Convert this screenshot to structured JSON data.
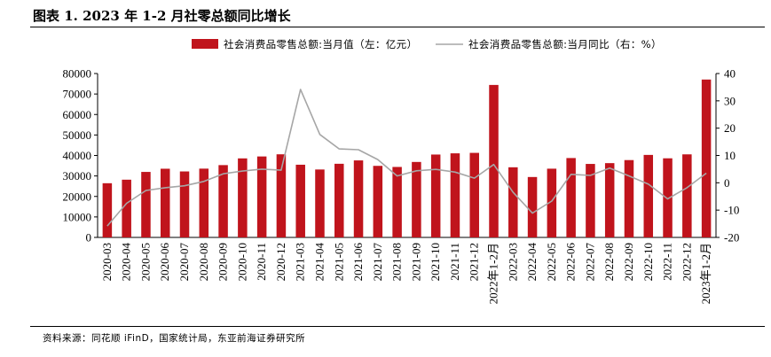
{
  "title": "图表 1.   2023 年 1-2 月社零总额同比增长",
  "source": "资料来源：同花顺 iFinD，国家统计局，东亚前海证券研究所",
  "chart_data": {
    "type": "bar+line",
    "categories": [
      "2020-03",
      "2020-04",
      "2020-05",
      "2020-06",
      "2020-07",
      "2020-08",
      "2020-09",
      "2020-10",
      "2020-11",
      "2020-12",
      "2021-03",
      "2021-04",
      "2021-05",
      "2021-06",
      "2021-07",
      "2021-08",
      "2021-09",
      "2021-10",
      "2021-11",
      "2021-12",
      "2022年1-2月",
      "2022-03",
      "2022-04",
      "2022-05",
      "2022-06",
      "2022-07",
      "2022-08",
      "2022-09",
      "2022-10",
      "2022-11",
      "2022-12",
      "2023年1-2月"
    ],
    "series": [
      {
        "name": "社会消费品零售总额:当月值（左：亿元）",
        "type": "bar",
        "axis": "left",
        "color": "#c0141c",
        "values": [
          26450,
          28178,
          31973,
          33526,
          32203,
          33571,
          35295,
          38576,
          39514,
          40566,
          35484,
          33153,
          35945,
          37586,
          34925,
          34395,
          36833,
          40454,
          41043,
          41269,
          74426,
          34233,
          29483,
          33547,
          38742,
          35870,
          36258,
          37745,
          40271,
          38615,
          40542,
          77067
        ]
      },
      {
        "name": "社会消费品零售总额:当月同比（右：%）",
        "type": "line",
        "axis": "right",
        "color": "#a6a6a6",
        "values": [
          -15.8,
          -7.5,
          -2.8,
          -1.8,
          -1.1,
          0.5,
          3.3,
          4.3,
          5.0,
          4.6,
          34.2,
          17.7,
          12.4,
          12.1,
          8.5,
          2.5,
          4.4,
          4.9,
          3.9,
          1.7,
          6.7,
          -3.5,
          -11.1,
          -6.7,
          3.1,
          2.7,
          5.4,
          2.5,
          -0.5,
          -5.9,
          -1.8,
          3.5
        ]
      }
    ],
    "left_axis": {
      "ylim": [
        0,
        80000
      ],
      "ticks": [
        "0",
        "10000",
        "20000",
        "30000",
        "40000",
        "50000",
        "60000",
        "70000",
        "80000"
      ]
    },
    "right_axis": {
      "ylim": [
        -20,
        40
      ],
      "ticks": [
        "-20",
        "-10",
        "0",
        "10",
        "20",
        "30",
        "40"
      ]
    },
    "legend_position": "top"
  }
}
